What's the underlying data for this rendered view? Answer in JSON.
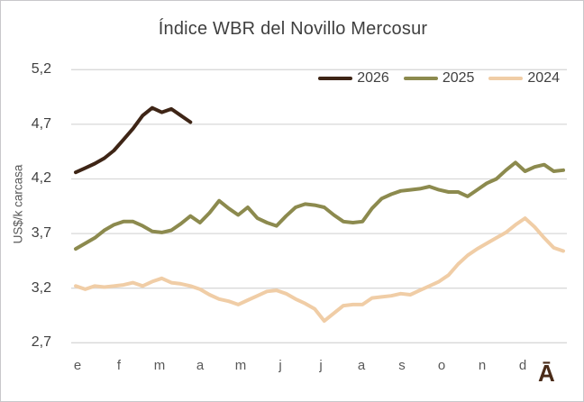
{
  "chart_data": {
    "type": "line",
    "title": "Índice WBR del Novillo Mercosur",
    "ylabel": "US$/k carcasa",
    "ylim": [
      2.7,
      5.2
    ],
    "y_ticks": [
      5.2,
      4.7,
      4.2,
      3.7,
      3.2,
      2.7
    ],
    "y_tick_labels": [
      "5,2",
      "4,7",
      "4,2",
      "3,7",
      "3,2",
      "2,7"
    ],
    "x_labels": [
      "e",
      "f",
      "m",
      "a",
      "m",
      "j",
      "j",
      "a",
      "s",
      "o",
      "n",
      "d"
    ],
    "x_unit": "weekly",
    "grid": "horizontal",
    "gridline_color": "#d9d9d9",
    "legend_position": "top-right",
    "series": [
      {
        "name": "2026",
        "color": "#3e2516",
        "values": [
          4.26,
          4.3,
          4.34,
          4.39,
          4.46,
          4.56,
          4.66,
          4.78,
          4.85,
          4.81,
          4.84,
          4.78,
          4.72
        ]
      },
      {
        "name": "2025",
        "color": "#8c8a4e",
        "values": [
          3.56,
          3.61,
          3.66,
          3.73,
          3.78,
          3.81,
          3.81,
          3.77,
          3.72,
          3.71,
          3.73,
          3.79,
          3.86,
          3.8,
          3.89,
          4.0,
          3.93,
          3.87,
          3.94,
          3.84,
          3.8,
          3.77,
          3.86,
          3.94,
          3.97,
          3.96,
          3.94,
          3.87,
          3.81,
          3.8,
          3.81,
          3.93,
          4.02,
          4.06,
          4.09,
          4.1,
          4.11,
          4.13,
          4.1,
          4.08,
          4.08,
          4.04,
          4.1,
          4.16,
          4.2,
          4.28,
          4.35,
          4.27,
          4.31,
          4.33,
          4.27,
          4.28
        ]
      },
      {
        "name": "2024",
        "color": "#f0cda6",
        "values": [
          3.22,
          3.19,
          3.22,
          3.21,
          3.22,
          3.23,
          3.25,
          3.22,
          3.26,
          3.29,
          3.25,
          3.24,
          3.22,
          3.19,
          3.14,
          3.1,
          3.08,
          3.05,
          3.09,
          3.13,
          3.17,
          3.18,
          3.15,
          3.1,
          3.06,
          3.01,
          2.9,
          2.97,
          3.04,
          3.05,
          3.05,
          3.11,
          3.12,
          3.13,
          3.15,
          3.14,
          3.18,
          3.22,
          3.26,
          3.32,
          3.42,
          3.5,
          3.56,
          3.61,
          3.66,
          3.71,
          3.78,
          3.84,
          3.76,
          3.66,
          3.57,
          3.54
        ]
      }
    ]
  },
  "branding": {
    "mark": "Ā"
  }
}
